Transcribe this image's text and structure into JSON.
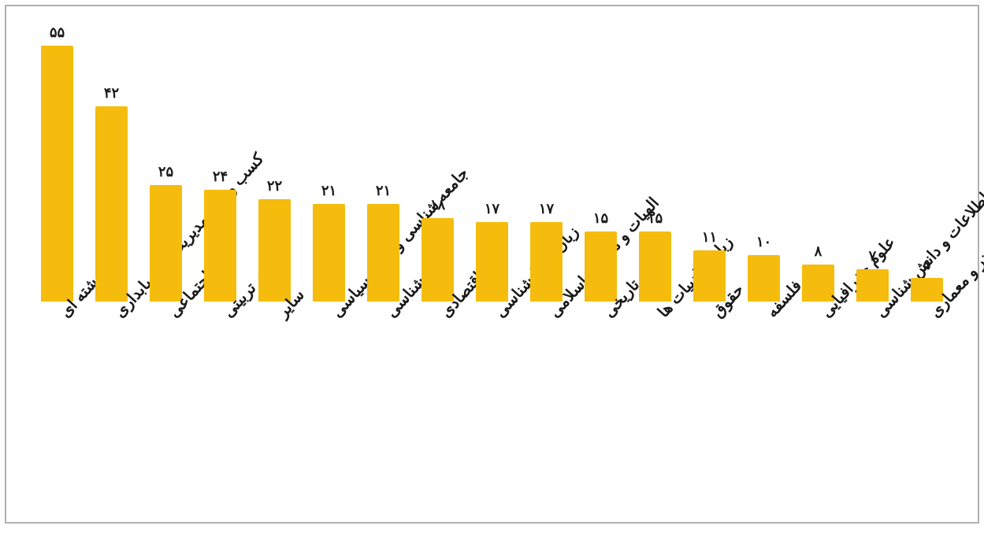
{
  "chart": {
    "type": "bar",
    "direction": "ltr-visual",
    "background_color": "#ffffff",
    "frame_border_color": "#b0b0b0",
    "bar_color": "#f5bc0e",
    "bar_width_ratio": 0.6,
    "value_label_fontsize": 18,
    "value_label_color": "#1a1a1a",
    "x_label_fontsize": 20,
    "x_label_color": "#1a1a1a",
    "x_label_rotation_deg": -48,
    "value_numeral_system": "persian",
    "ylim": [
      0,
      60
    ],
    "grid": false,
    "items": [
      {
        "label": "چند رشته ای",
        "value": 55,
        "value_display": "۵۵"
      },
      {
        "label": "کسب و کار، مدیریت و حسابداری",
        "value": 42,
        "value_display": "۴۲"
      },
      {
        "label": "علوم اجتماعی",
        "value": 25,
        "value_display": "۲۵"
      },
      {
        "label": "علوم تربیتی",
        "value": 24,
        "value_display": "۲۴"
      },
      {
        "label": "سایر",
        "value": 22,
        "value_display": "۲۲"
      },
      {
        "label": "جامعه شناسی و علوم سیاسی",
        "value": 21,
        "value_display": "۲۱"
      },
      {
        "label": "روان شناسی",
        "value": 21,
        "value_display": "۲۱"
      },
      {
        "label": "علوم اقتصادی",
        "value": 18,
        "value_display": "۱۸"
      },
      {
        "label": "زبان و زبانشناسی",
        "value": 17,
        "value_display": "۱۷"
      },
      {
        "label": "الهیات و معارف اسلامی",
        "value": 17,
        "value_display": "۱۷"
      },
      {
        "label": "علوم تاریخی",
        "value": 15,
        "value_display": "۱۵"
      },
      {
        "label": "زبان و ادبیات ها",
        "value": 15,
        "value_display": "۱۵"
      },
      {
        "label": "حقوق",
        "value": 11,
        "value_display": "۱۱"
      },
      {
        "label": "فلسفه",
        "value": 10,
        "value_display": "۱۰"
      },
      {
        "label": "علوم جغرافیایی",
        "value": 8,
        "value_display": "۸"
      },
      {
        "label": "علم اطلاعات و دانش شناسی",
        "value": 7,
        "value_display": "۷"
      },
      {
        "label": "هنر و معماری",
        "value": 5,
        "value_display": "۵"
      }
    ]
  }
}
